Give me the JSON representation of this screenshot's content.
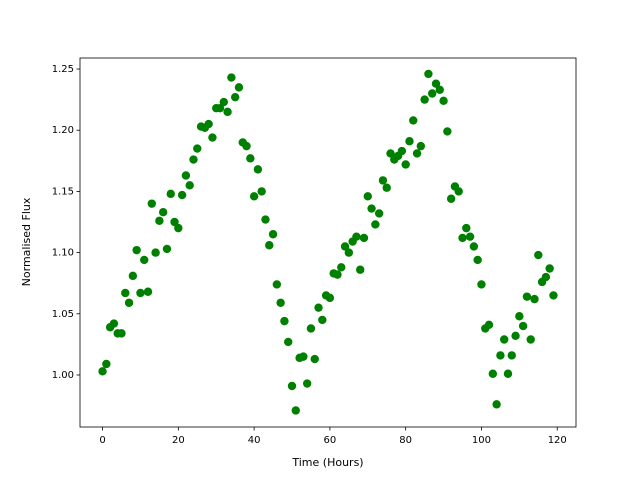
{
  "chart_data": {
    "type": "scatter",
    "x_label": "Time (Hours)",
    "y_label": "Normalised Flux",
    "x": [
      0,
      1,
      2,
      3,
      4,
      5,
      6,
      7,
      8,
      9,
      10,
      11,
      12,
      13,
      14,
      15,
      16,
      17,
      18,
      19,
      20,
      21,
      22,
      23,
      24,
      25,
      26,
      27,
      28,
      29,
      30,
      31,
      32,
      33,
      34,
      35,
      36,
      37,
      38,
      39,
      40,
      41,
      42,
      43,
      44,
      45,
      46,
      47,
      48,
      49,
      50,
      51,
      52,
      53,
      54,
      55,
      56,
      57,
      58,
      59,
      60,
      61,
      62,
      63,
      64,
      65,
      66,
      67,
      68,
      69,
      70,
      71,
      72,
      73,
      74,
      75,
      76,
      77,
      78,
      79,
      80,
      81,
      82,
      83,
      84,
      85,
      86,
      87,
      88,
      89,
      90,
      91,
      92,
      93,
      94,
      95,
      96,
      97,
      98,
      99,
      100,
      101,
      102,
      103,
      104,
      105,
      106,
      107,
      108,
      109,
      110,
      111,
      112,
      113,
      114,
      115,
      116,
      117,
      118,
      119
    ],
    "values": [
      1.003,
      1.009,
      1.039,
      1.042,
      1.034,
      1.034,
      1.067,
      1.059,
      1.081,
      1.102,
      1.067,
      1.094,
      1.068,
      1.14,
      1.1,
      1.126,
      1.133,
      1.103,
      1.148,
      1.125,
      1.12,
      1.147,
      1.163,
      1.155,
      1.176,
      1.185,
      1.203,
      1.202,
      1.205,
      1.194,
      1.218,
      1.218,
      1.223,
      1.215,
      1.243,
      1.227,
      1.235,
      1.19,
      1.187,
      1.177,
      1.146,
      1.168,
      1.15,
      1.127,
      1.106,
      1.115,
      1.074,
      1.059,
      1.044,
      1.027,
      0.991,
      0.971,
      1.014,
      1.015,
      0.993,
      1.038,
      1.013,
      1.055,
      1.045,
      1.065,
      1.063,
      1.083,
      1.082,
      1.088,
      1.105,
      1.1,
      1.109,
      1.113,
      1.086,
      1.112,
      1.146,
      1.136,
      1.123,
      1.132,
      1.159,
      1.153,
      1.181,
      1.176,
      1.179,
      1.183,
      1.172,
      1.191,
      1.208,
      1.181,
      1.187,
      1.225,
      1.246,
      1.23,
      1.238,
      1.233,
      1.224,
      1.199,
      1.144,
      1.154,
      1.15,
      1.112,
      1.12,
      1.113,
      1.105,
      1.094,
      1.074,
      1.038,
      1.041,
      1.001,
      0.976,
      1.016,
      1.029,
      1.001,
      1.016,
      1.032,
      1.048,
      1.04,
      1.064,
      1.029,
      1.062,
      1.098,
      1.076,
      1.08,
      1.087,
      1.065
    ],
    "color": "#008000",
    "xlim": [
      -5.95,
      124.95
    ],
    "xticks": [
      0,
      20,
      40,
      60,
      80,
      100,
      120
    ],
    "ylim": [
      0.9575,
      1.259
    ],
    "yticks": [
      {
        "value": 1.0,
        "label": "1.00"
      },
      {
        "value": 1.05,
        "label": "1.05"
      },
      {
        "value": 1.1,
        "label": "1.10"
      },
      {
        "value": 1.15,
        "label": "1.15"
      },
      {
        "value": 1.2,
        "label": "1.20"
      },
      {
        "value": 1.25,
        "label": "1.25"
      }
    ],
    "grid": false
  }
}
